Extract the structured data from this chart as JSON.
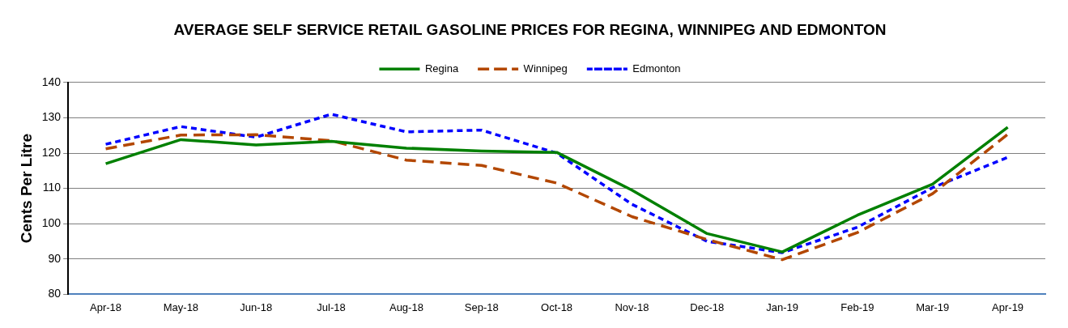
{
  "chart_data": {
    "type": "line",
    "title": "AVERAGE SELF SERVICE RETAIL GASOLINE PRICES FOR REGINA, WINNIPEG AND EDMONTON",
    "ylabel": "Cents Per Litre",
    "categories": [
      "Apr-18",
      "May-18",
      "Jun-18",
      "Jul-18",
      "Aug-18",
      "Sep-18",
      "Oct-18",
      "Nov-18",
      "Dec-18",
      "Jan-19",
      "Feb-19",
      "Mar-19",
      "Apr-19"
    ],
    "series": [
      {
        "name": "Regina",
        "color": "#008000",
        "line_style": "solid",
        "values": [
          117,
          123.8,
          122.3,
          123.3,
          121.4,
          120.6,
          120.2,
          109.5,
          97.2,
          92,
          102.4,
          111.2,
          127.3
        ]
      },
      {
        "name": "Winnipeg",
        "color": "#b34700",
        "line_style": "dashed",
        "values": [
          121.2,
          125.1,
          125.2,
          123.5,
          118,
          116.5,
          111.5,
          102,
          95.5,
          89.8,
          97.5,
          108.5,
          125.3
        ]
      },
      {
        "name": "Edmonton",
        "color": "#0000ff",
        "line_style": "dotted",
        "values": [
          122.5,
          127.5,
          124.5,
          131,
          126,
          126.5,
          120,
          105.5,
          95,
          91.8,
          99,
          110.2,
          118.8
        ]
      }
    ],
    "ylim": [
      80,
      140
    ],
    "yticks": [
      80,
      90,
      100,
      110,
      120,
      130,
      140
    ],
    "grid": "y",
    "legend": "top",
    "marker": "none"
  }
}
